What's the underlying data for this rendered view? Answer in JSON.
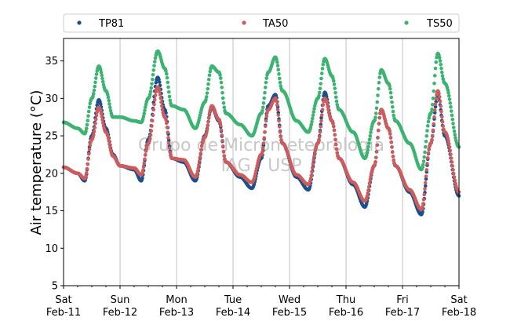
{
  "chart_data": {
    "type": "scatter",
    "title": "",
    "xlabel": "",
    "ylabel": "Air temperature (°C)",
    "ylim": [
      5,
      38
    ],
    "yticks": [
      5,
      10,
      15,
      20,
      25,
      30,
      35
    ],
    "xlim": [
      "2023-02-11",
      "2023-02-18"
    ],
    "xticks": [
      {
        "date": "2023-02-11",
        "day": "Sat",
        "label": "Feb-11"
      },
      {
        "date": "2023-02-12",
        "day": "Sun",
        "label": "Feb-12"
      },
      {
        "date": "2023-02-13",
        "day": "Mon",
        "label": "Feb-13"
      },
      {
        "date": "2023-02-14",
        "day": "Tue",
        "label": "Feb-14"
      },
      {
        "date": "2023-02-15",
        "day": "Wed",
        "label": "Feb-15"
      },
      {
        "date": "2023-02-16",
        "day": "Thu",
        "label": "Feb-16"
      },
      {
        "date": "2023-02-17",
        "day": "Fri",
        "label": "Feb-17"
      },
      {
        "date": "2023-02-18",
        "day": "Sat",
        "label": "Feb-18"
      }
    ],
    "grid": "vertical",
    "legend_position": "top",
    "watermark": [
      "Grupo de Micrometeorologia",
      "IAG / USP"
    ],
    "series": [
      {
        "name": "TP81",
        "color": "#1f4e8c",
        "points": [
          [
            "2023-02-11 00:00",
            20.8
          ],
          [
            "2023-02-11 06:00",
            20.0
          ],
          [
            "2023-02-11 09:00",
            19.0
          ],
          [
            "2023-02-11 12:00",
            25.0
          ],
          [
            "2023-02-11 15:00",
            29.8
          ],
          [
            "2023-02-11 18:00",
            26.0
          ],
          [
            "2023-02-11 21:00",
            22.5
          ],
          [
            "2023-02-12 00:00",
            21.0
          ],
          [
            "2023-02-12 06:00",
            20.5
          ],
          [
            "2023-02-12 09:00",
            19.0
          ],
          [
            "2023-02-12 12:00",
            24.5
          ],
          [
            "2023-02-12 16:00",
            32.8
          ],
          [
            "2023-02-12 19:00",
            28.5
          ],
          [
            "2023-02-12 22:00",
            22.0
          ],
          [
            "2023-02-13 03:00",
            21.5
          ],
          [
            "2023-02-13 08:00",
            19.0
          ],
          [
            "2023-02-13 12:00",
            25.0
          ],
          [
            "2023-02-13 15:00",
            28.8
          ],
          [
            "2023-02-13 18:00",
            27.0
          ],
          [
            "2023-02-13 21:00",
            21.5
          ],
          [
            "2023-02-14 03:00",
            19.5
          ],
          [
            "2023-02-14 08:00",
            18.0
          ],
          [
            "2023-02-14 12:00",
            22.0
          ],
          [
            "2023-02-14 15:00",
            29.0
          ],
          [
            "2023-02-14 18:00",
            30.5
          ],
          [
            "2023-02-14 21:00",
            24.0
          ],
          [
            "2023-02-15 03:00",
            19.5
          ],
          [
            "2023-02-15 08:00",
            17.8
          ],
          [
            "2023-02-15 12:00",
            24.0
          ],
          [
            "2023-02-15 15:00",
            30.8
          ],
          [
            "2023-02-15 18:00",
            27.0
          ],
          [
            "2023-02-15 21:00",
            22.0
          ],
          [
            "2023-02-16 03:00",
            18.5
          ],
          [
            "2023-02-16 08:00",
            15.5
          ],
          [
            "2023-02-16 12:00",
            21.0
          ],
          [
            "2023-02-16 15:00",
            28.5
          ],
          [
            "2023-02-16 18:00",
            26.0
          ],
          [
            "2023-02-16 21:00",
            21.0
          ],
          [
            "2023-02-17 03:00",
            17.5
          ],
          [
            "2023-02-17 08:00",
            14.5
          ],
          [
            "2023-02-17 12:00",
            24.0
          ],
          [
            "2023-02-17 15:00",
            30.5
          ],
          [
            "2023-02-17 18:00",
            25.0
          ],
          [
            "2023-02-18 00:00",
            17.0
          ]
        ]
      },
      {
        "name": "TA50",
        "color": "#cd5c5c",
        "points": [
          [
            "2023-02-11 00:00",
            20.8
          ],
          [
            "2023-02-11 06:00",
            20.0
          ],
          [
            "2023-02-11 09:00",
            19.3
          ],
          [
            "2023-02-11 12:00",
            24.5
          ],
          [
            "2023-02-11 15:00",
            28.8
          ],
          [
            "2023-02-11 18:00",
            25.5
          ],
          [
            "2023-02-11 21:00",
            22.3
          ],
          [
            "2023-02-12 00:00",
            21.0
          ],
          [
            "2023-02-12 06:00",
            20.7
          ],
          [
            "2023-02-12 09:00",
            19.8
          ],
          [
            "2023-02-12 12:00",
            24.0
          ],
          [
            "2023-02-12 16:00",
            31.5
          ],
          [
            "2023-02-12 19:00",
            27.5
          ],
          [
            "2023-02-12 22:00",
            22.0
          ],
          [
            "2023-02-13 03:00",
            21.8
          ],
          [
            "2023-02-13 08:00",
            19.5
          ],
          [
            "2023-02-13 12:00",
            24.8
          ],
          [
            "2023-02-13 15:00",
            29.0
          ],
          [
            "2023-02-13 18:00",
            27.2
          ],
          [
            "2023-02-13 21:00",
            21.5
          ],
          [
            "2023-02-14 03:00",
            19.8
          ],
          [
            "2023-02-14 08:00",
            18.8
          ],
          [
            "2023-02-14 12:00",
            22.5
          ],
          [
            "2023-02-14 15:00",
            28.5
          ],
          [
            "2023-02-14 18:00",
            30.0
          ],
          [
            "2023-02-14 21:00",
            24.0
          ],
          [
            "2023-02-15 03:00",
            19.8
          ],
          [
            "2023-02-15 08:00",
            18.5
          ],
          [
            "2023-02-15 12:00",
            24.0
          ],
          [
            "2023-02-15 15:00",
            30.0
          ],
          [
            "2023-02-15 18:00",
            27.0
          ],
          [
            "2023-02-15 21:00",
            22.0
          ],
          [
            "2023-02-16 03:00",
            18.8
          ],
          [
            "2023-02-16 08:00",
            16.3
          ],
          [
            "2023-02-16 12:00",
            21.0
          ],
          [
            "2023-02-16 15:00",
            28.5
          ],
          [
            "2023-02-16 18:00",
            26.0
          ],
          [
            "2023-02-16 21:00",
            21.0
          ],
          [
            "2023-02-17 03:00",
            17.8
          ],
          [
            "2023-02-17 08:00",
            15.2
          ],
          [
            "2023-02-17 12:00",
            24.0
          ],
          [
            "2023-02-17 15:00",
            31.0
          ],
          [
            "2023-02-17 18:00",
            25.5
          ],
          [
            "2023-02-18 00:00",
            17.5
          ]
        ]
      },
      {
        "name": "TS50",
        "color": "#3cb371",
        "points": [
          [
            "2023-02-11 00:00",
            26.8
          ],
          [
            "2023-02-11 06:00",
            26.0
          ],
          [
            "2023-02-11 09:00",
            25.3
          ],
          [
            "2023-02-11 12:00",
            30.0
          ],
          [
            "2023-02-11 15:00",
            34.3
          ],
          [
            "2023-02-11 18:00",
            31.0
          ],
          [
            "2023-02-11 21:00",
            27.5
          ],
          [
            "2023-02-12 00:00",
            27.5
          ],
          [
            "2023-02-12 06:00",
            27.0
          ],
          [
            "2023-02-12 09:00",
            26.8
          ],
          [
            "2023-02-12 12:00",
            30.0
          ],
          [
            "2023-02-12 16:00",
            36.3
          ],
          [
            "2023-02-12 19:00",
            34.0
          ],
          [
            "2023-02-12 22:00",
            29.0
          ],
          [
            "2023-02-13 03:00",
            28.5
          ],
          [
            "2023-02-13 08:00",
            26.0
          ],
          [
            "2023-02-13 12:00",
            29.5
          ],
          [
            "2023-02-13 15:00",
            34.3
          ],
          [
            "2023-02-13 18:00",
            33.5
          ],
          [
            "2023-02-13 21:00",
            28.0
          ],
          [
            "2023-02-14 03:00",
            26.5
          ],
          [
            "2023-02-14 08:00",
            25.0
          ],
          [
            "2023-02-14 12:00",
            28.0
          ],
          [
            "2023-02-14 15:00",
            33.5
          ],
          [
            "2023-02-14 18:00",
            35.5
          ],
          [
            "2023-02-14 21:00",
            31.0
          ],
          [
            "2023-02-15 03:00",
            27.0
          ],
          [
            "2023-02-15 08:00",
            25.5
          ],
          [
            "2023-02-15 12:00",
            30.0
          ],
          [
            "2023-02-15 15:00",
            35.3
          ],
          [
            "2023-02-15 18:00",
            33.0
          ],
          [
            "2023-02-15 21:00",
            28.5
          ],
          [
            "2023-02-16 03:00",
            25.5
          ],
          [
            "2023-02-16 08:00",
            22.0
          ],
          [
            "2023-02-16 12:00",
            27.0
          ],
          [
            "2023-02-16 15:00",
            33.8
          ],
          [
            "2023-02-16 18:00",
            32.0
          ],
          [
            "2023-02-16 21:00",
            27.0
          ],
          [
            "2023-02-17 03:00",
            24.0
          ],
          [
            "2023-02-17 08:00",
            20.5
          ],
          [
            "2023-02-17 12:00",
            28.0
          ],
          [
            "2023-02-17 15:00",
            36.0
          ],
          [
            "2023-02-17 18:00",
            32.0
          ],
          [
            "2023-02-18 00:00",
            23.5
          ]
        ]
      }
    ]
  }
}
